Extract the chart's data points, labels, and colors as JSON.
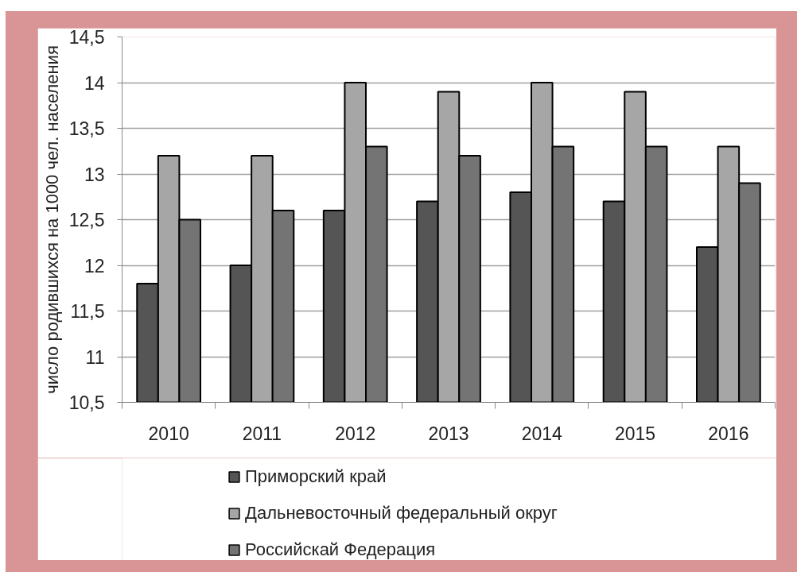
{
  "chart_data": {
    "type": "bar",
    "categories": [
      "2010",
      "2011",
      "2012",
      "2013",
      "2014",
      "2015",
      "2016"
    ],
    "series": [
      {
        "name": "Приморский край",
        "color": "#555555",
        "values": [
          11.8,
          12.0,
          12.6,
          12.7,
          12.8,
          12.7,
          12.2
        ]
      },
      {
        "name": "Дальневосточный федеральный округ",
        "color": "#a6a6a6",
        "values": [
          13.2,
          13.2,
          14.0,
          13.9,
          14.0,
          13.9,
          13.3
        ]
      },
      {
        "name": "Российскай Федерация",
        "color": "#747474",
        "values": [
          12.5,
          12.6,
          13.3,
          13.2,
          13.3,
          13.3,
          12.9
        ]
      }
    ],
    "ylabel": "число родившихся на 1000 чел. населения",
    "ylim": [
      10.5,
      14.5
    ],
    "yticks": [
      {
        "value": 10.5,
        "label": "10,5"
      },
      11,
      {
        "value": 11.5,
        "label": "11,5"
      },
      12,
      {
        "value": 12.5,
        "label": "12,5"
      },
      13,
      {
        "value": 13.5,
        "label": "13,5"
      },
      14,
      {
        "value": 14.5,
        "label": "14,5"
      }
    ],
    "grid": "y",
    "legend": "bottom"
  }
}
